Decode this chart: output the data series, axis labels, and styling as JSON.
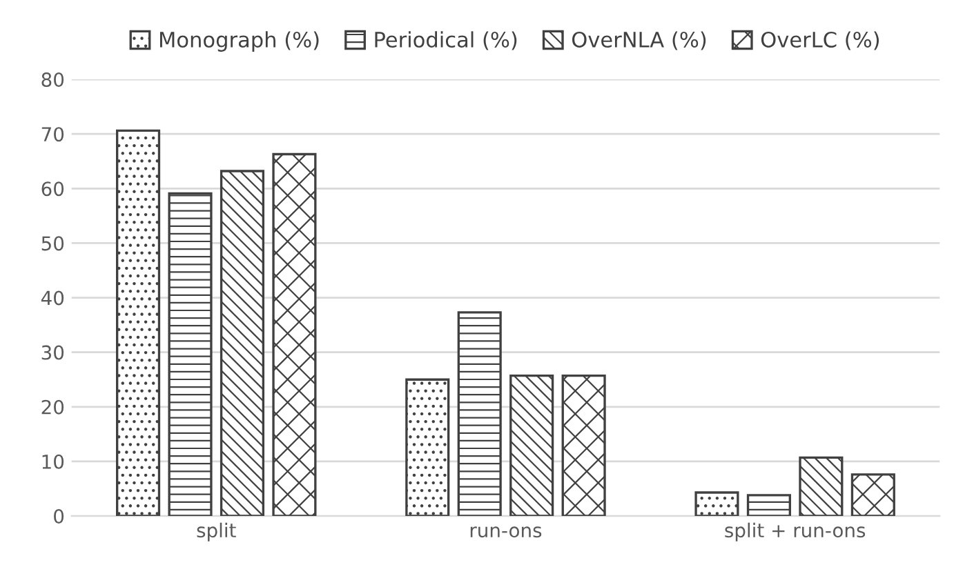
{
  "chart_data": {
    "type": "bar",
    "categories": [
      "split",
      "run-ons",
      "split + run-ons"
    ],
    "series": [
      {
        "name": "Monograph (%)",
        "color": "#404040",
        "values": [
          70.6,
          25.0,
          4.3
        ]
      },
      {
        "name": "Periodical (%)",
        "color": "#404040",
        "values": [
          59.1,
          37.3,
          3.8
        ]
      },
      {
        "name": "OverNLA (%)",
        "color": "#404040",
        "values": [
          63.2,
          25.7,
          10.7
        ]
      },
      {
        "name": "OverLC (%)",
        "color": "#404040",
        "values": [
          66.3,
          25.7,
          7.6
        ]
      }
    ],
    "ylim": [
      0,
      80
    ],
    "yticks": [
      0,
      10,
      20,
      30,
      40,
      50,
      60,
      70,
      80
    ],
    "grid": "y",
    "legend": "top"
  }
}
